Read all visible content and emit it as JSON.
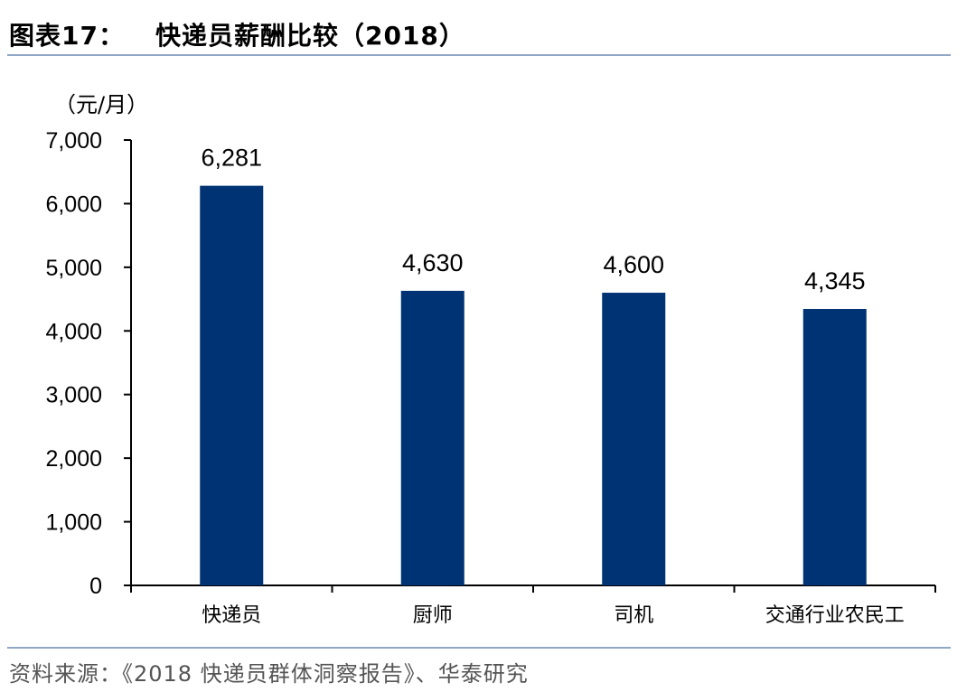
{
  "header": {
    "figure_label": "图表17：",
    "title": "快递员薪酬比较（2018）"
  },
  "source": "资料来源：《2018 快递员群体洞察报告》、华泰研究",
  "chart_data": {
    "type": "bar",
    "title": "快递员薪酬比较（2018）",
    "y_unit": "（元/月）",
    "xlabel": "",
    "ylabel": "",
    "categories": [
      "快递员",
      "厨师",
      "司机",
      "交通行业农民工"
    ],
    "values": [
      6281,
      4630,
      4600,
      4345
    ],
    "value_labels": [
      "6,281",
      "4,630",
      "4,600",
      "4,345"
    ],
    "ylim": [
      0,
      7000
    ],
    "yticks": [
      0,
      1000,
      2000,
      3000,
      4000,
      5000,
      6000,
      7000
    ],
    "ytick_labels": [
      "0",
      "1,000",
      "2,000",
      "3,000",
      "4,000",
      "5,000",
      "6,000",
      "7,000"
    ],
    "bar_color": "#003373",
    "grid": false,
    "legend": "none"
  }
}
